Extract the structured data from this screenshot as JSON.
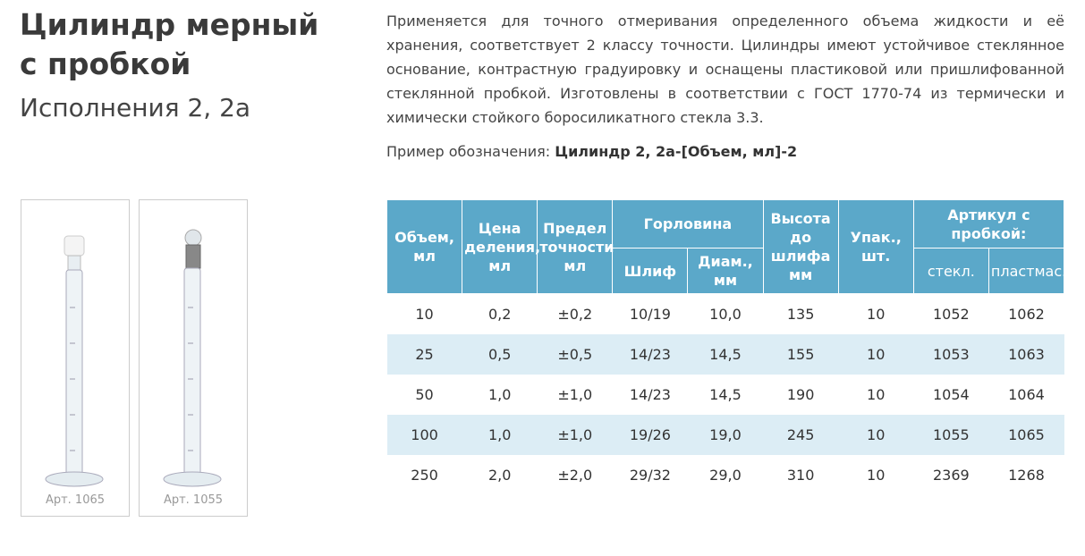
{
  "header": {
    "title": "Цилиндр мерный с пробкой",
    "subtitle": "Исполнения 2, 2а"
  },
  "description": "Применяется для точного отмеривания определенного объема жидкости и её хранения, соответствует 2 классу точности. Цилиндры имеют устойчивое стеклянное основание, контрастную градуировку и оснащены пластиковой или пришлифованной стеклянной пробкой. Изготовлены в соответствии с ГОСТ 1770-74 из термически и химически стойкого боросиликатного стекла 3.3.",
  "example": {
    "label": "Пример обозначения:",
    "value": "Цилиндр 2, 2а-[Объем, мл]-2"
  },
  "images": [
    {
      "caption": "Арт.  1065"
    },
    {
      "caption": "Арт. 1055"
    }
  ],
  "table": {
    "header": {
      "volume": "Объем, мл",
      "division": "Цена деления, мл",
      "accuracy": "Предел точности мл",
      "neck": "Горловина",
      "joint": "Шлиф",
      "diameter": "Диам., мм",
      "height": "Высота до шлифа мм",
      "pack": "Упак., шт.",
      "article": "Артикул с пробкой:",
      "glass": "стекл.",
      "plastic": "пластмас."
    },
    "rows": [
      [
        "10",
        "0,2",
        "±0,2",
        "10/19",
        "10,0",
        "135",
        "10",
        "1052",
        "1062"
      ],
      [
        "25",
        "0,5",
        "±0,5",
        "14/23",
        "14,5",
        "155",
        "10",
        "1053",
        "1063"
      ],
      [
        "50",
        "1,0",
        "±1,0",
        "14/23",
        "14,5",
        "190",
        "10",
        "1054",
        "1064"
      ],
      [
        "100",
        "1,0",
        "±1,0",
        "19/26",
        "19,0",
        "245",
        "10",
        "1055",
        "1065"
      ],
      [
        "250",
        "2,0",
        "±2,0",
        "29/32",
        "29,0",
        "310",
        "10",
        "2369",
        "1268"
      ]
    ]
  }
}
